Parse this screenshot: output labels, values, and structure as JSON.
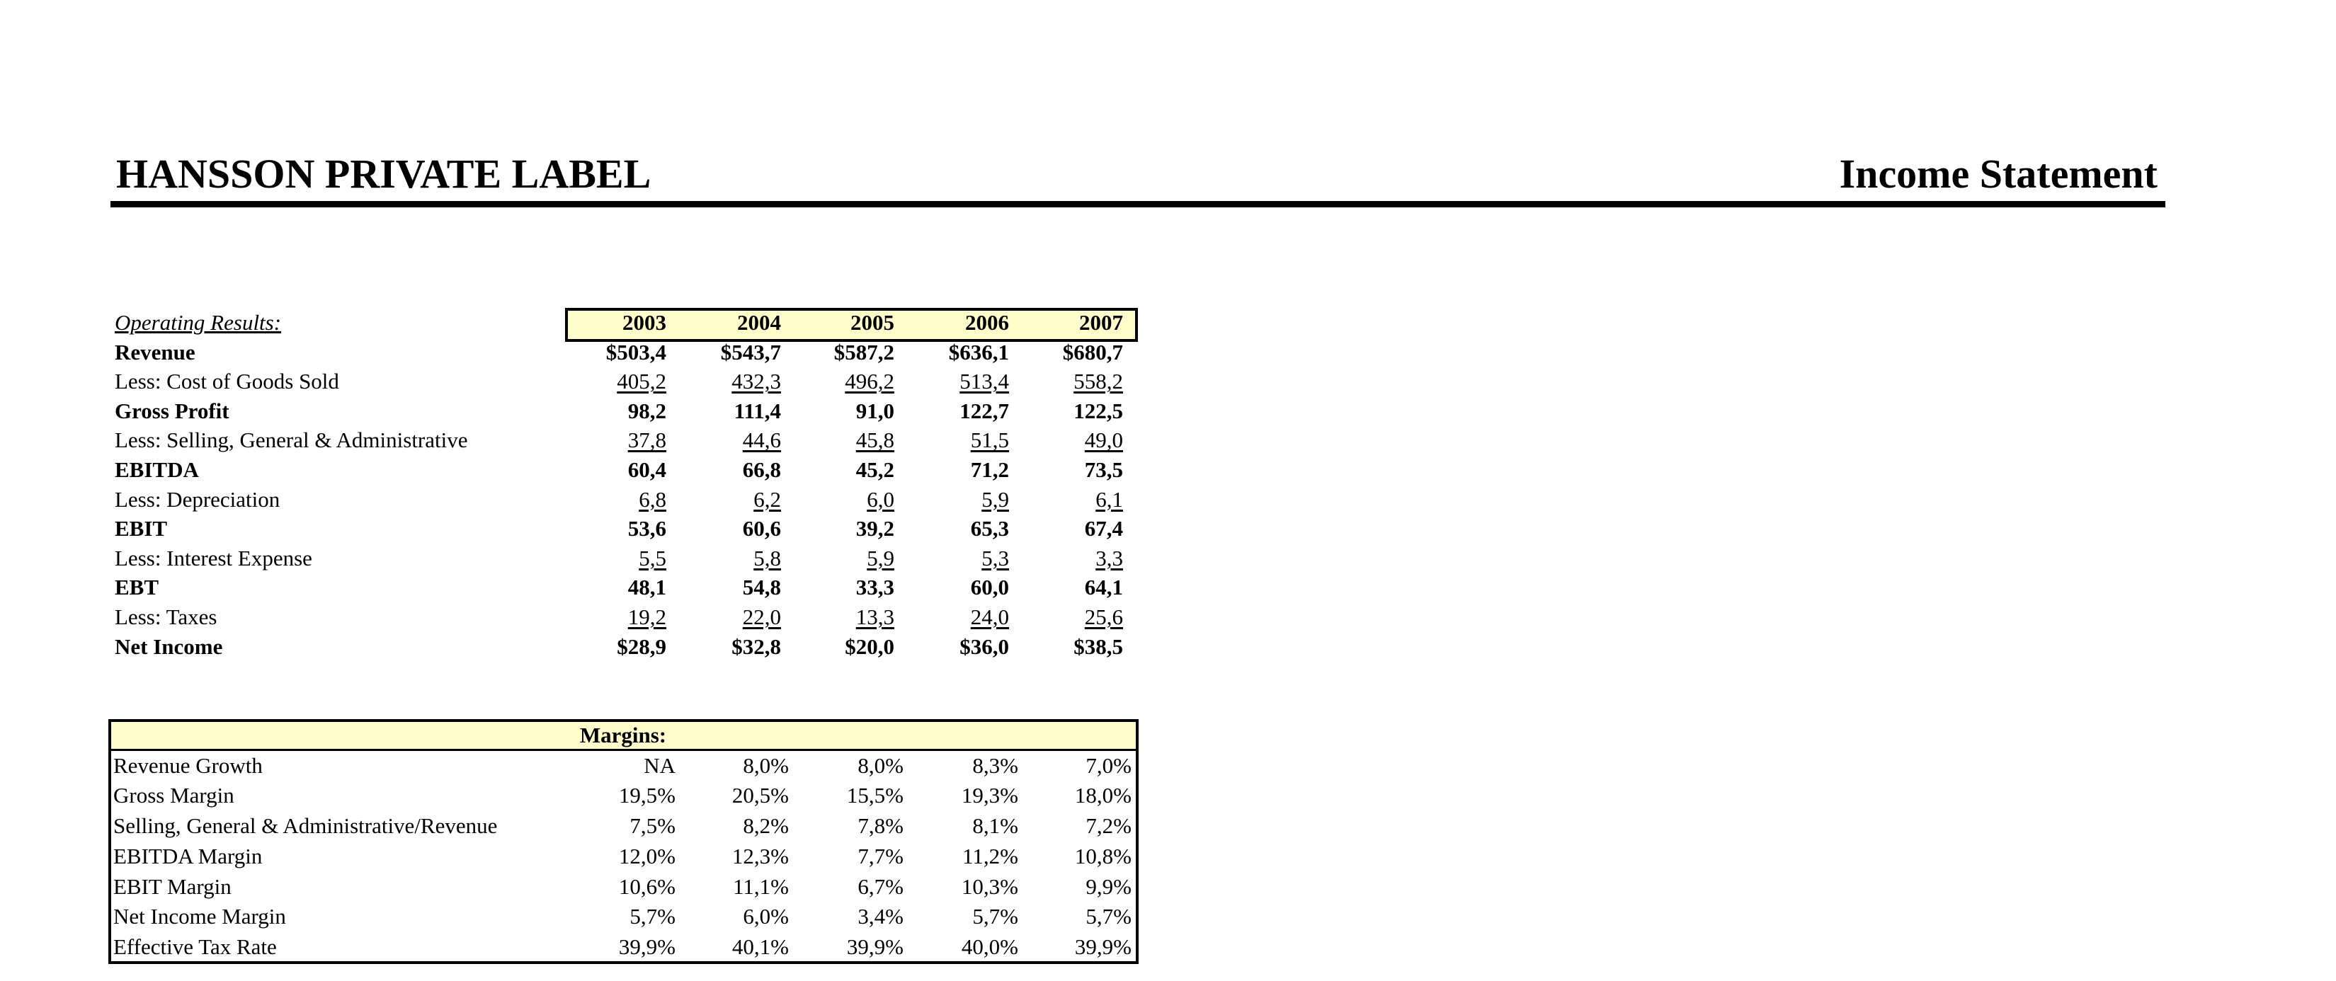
{
  "header": {
    "title": "HANSSON PRIVATE LABEL",
    "subtitle": "Income Statement"
  },
  "operating": {
    "label": "Operating Results:",
    "columns": [
      "2003",
      "2004",
      "2005",
      "2006",
      "2007"
    ],
    "rows": [
      {
        "label": "Revenue",
        "values": [
          "$503,4",
          "$543,7",
          "$587,2",
          "$636,1",
          "$680,7"
        ]
      },
      {
        "label": "Less:  Cost of Goods Sold",
        "values": [
          "405,2",
          "432,3",
          "496,2",
          "513,4",
          "558,2"
        ]
      },
      {
        "label": "Gross Profit",
        "values": [
          "98,2",
          "111,4",
          "91,0",
          "122,7",
          "122,5"
        ]
      },
      {
        "label": "Less:  Selling, General & Administrative",
        "values": [
          "37,8",
          "44,6",
          "45,8",
          "51,5",
          "49,0"
        ]
      },
      {
        "label": "EBITDA",
        "values": [
          "60,4",
          "66,8",
          "45,2",
          "71,2",
          "73,5"
        ]
      },
      {
        "label": "Less:  Depreciation",
        "values": [
          "6,8",
          "6,2",
          "6,0",
          "5,9",
          "6,1"
        ]
      },
      {
        "label": "EBIT",
        "values": [
          "53,6",
          "60,6",
          "39,2",
          "65,3",
          "67,4"
        ]
      },
      {
        "label": "Less:  Interest Expense",
        "values": [
          "5,5",
          "5,8",
          "5,9",
          "5,3",
          "3,3"
        ]
      },
      {
        "label": "EBT",
        "values": [
          "48,1",
          "54,8",
          "33,3",
          "60,0",
          "64,1"
        ]
      },
      {
        "label": "Less:  Taxes",
        "values": [
          "19,2",
          "22,0",
          "13,3",
          "24,0",
          "25,6"
        ]
      },
      {
        "label": "Net Income",
        "values": [
          "$28,9",
          "$32,8",
          "$20,0",
          "$36,0",
          "$38,5"
        ]
      }
    ]
  },
  "margins": {
    "title": "Margins:",
    "rows": [
      {
        "label": "Revenue Growth",
        "values": [
          "NA",
          "8,0%",
          "8,0%",
          "8,3%",
          "7,0%"
        ]
      },
      {
        "label": "Gross Margin",
        "values": [
          "19,5%",
          "20,5%",
          "15,5%",
          "19,3%",
          "18,0%"
        ]
      },
      {
        "label": "Selling, General & Administrative/Revenue",
        "values": [
          "7,5%",
          "8,2%",
          "7,8%",
          "8,1%",
          "7,2%"
        ]
      },
      {
        "label": "EBITDA Margin",
        "values": [
          "12,0%",
          "12,3%",
          "7,7%",
          "11,2%",
          "10,8%"
        ]
      },
      {
        "label": "EBIT Margin",
        "values": [
          "10,6%",
          "11,1%",
          "6,7%",
          "10,3%",
          "9,9%"
        ]
      },
      {
        "label": "Net Income Margin",
        "values": [
          "5,7%",
          "6,0%",
          "3,4%",
          "5,7%",
          "5,7%"
        ]
      },
      {
        "label": "Effective Tax Rate",
        "values": [
          "39,9%",
          "40,1%",
          "39,9%",
          "40,0%",
          "39,9%"
        ]
      }
    ]
  }
}
